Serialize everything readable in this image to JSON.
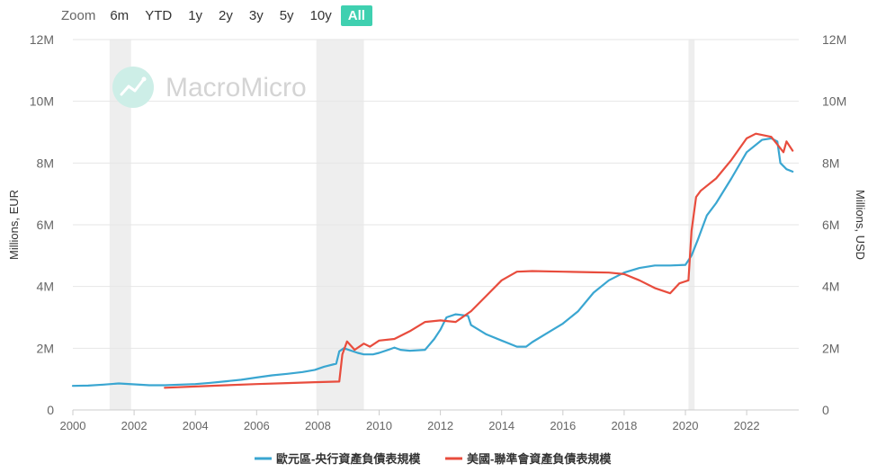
{
  "zoom": {
    "label": "Zoom",
    "buttons": [
      "6m",
      "YTD",
      "1y",
      "2y",
      "3y",
      "5y",
      "10y",
      "All"
    ],
    "active": "All"
  },
  "watermark": "MacroMicro",
  "chart_data": {
    "type": "line",
    "xlabel": "",
    "xlim": [
      2000,
      2023.7
    ],
    "x_ticks": [
      "2000",
      "2002",
      "2004",
      "2006",
      "2008",
      "2010",
      "2012",
      "2014",
      "2016",
      "2018",
      "2020",
      "2022"
    ],
    "ylabel_left": "Millions, EUR",
    "ylabel_right": "Millions, USD",
    "ylim_left": [
      0,
      12
    ],
    "ylim_right": [
      0,
      12
    ],
    "y_ticks_left": [
      "0",
      "2M",
      "4M",
      "6M",
      "8M",
      "10M",
      "12M"
    ],
    "y_ticks_right": [
      "0",
      "2M",
      "4M",
      "6M",
      "8M",
      "10M",
      "12M"
    ],
    "grid": true,
    "legend_position": "bottom-center",
    "recession_bands": [
      [
        2001.2,
        2001.9
      ],
      [
        2007.95,
        2009.5
      ],
      [
        2020.1,
        2020.3
      ]
    ],
    "series": [
      {
        "name": "歐元區-央行資產負債表規模",
        "axis": "left",
        "color": "#3aa6d1",
        "points": [
          [
            2000.0,
            0.78
          ],
          [
            2000.5,
            0.79
          ],
          [
            2001.0,
            0.82
          ],
          [
            2001.5,
            0.86
          ],
          [
            2002.0,
            0.83
          ],
          [
            2002.5,
            0.8
          ],
          [
            2003.0,
            0.8
          ],
          [
            2003.5,
            0.82
          ],
          [
            2004.0,
            0.84
          ],
          [
            2004.5,
            0.88
          ],
          [
            2005.0,
            0.93
          ],
          [
            2005.5,
            0.98
          ],
          [
            2006.0,
            1.05
          ],
          [
            2006.5,
            1.12
          ],
          [
            2007.0,
            1.17
          ],
          [
            2007.5,
            1.23
          ],
          [
            2007.9,
            1.3
          ],
          [
            2008.2,
            1.4
          ],
          [
            2008.6,
            1.5
          ],
          [
            2008.7,
            1.9
          ],
          [
            2008.85,
            2.0
          ],
          [
            2009.0,
            1.95
          ],
          [
            2009.3,
            1.85
          ],
          [
            2009.5,
            1.8
          ],
          [
            2009.8,
            1.8
          ],
          [
            2010.0,
            1.85
          ],
          [
            2010.3,
            1.95
          ],
          [
            2010.5,
            2.02
          ],
          [
            2010.7,
            1.95
          ],
          [
            2011.0,
            1.92
          ],
          [
            2011.5,
            1.95
          ],
          [
            2011.8,
            2.3
          ],
          [
            2012.0,
            2.6
          ],
          [
            2012.2,
            3.0
          ],
          [
            2012.5,
            3.1
          ],
          [
            2012.9,
            3.05
          ],
          [
            2013.0,
            2.75
          ],
          [
            2013.5,
            2.45
          ],
          [
            2014.0,
            2.25
          ],
          [
            2014.5,
            2.05
          ],
          [
            2014.8,
            2.05
          ],
          [
            2015.0,
            2.2
          ],
          [
            2015.5,
            2.5
          ],
          [
            2016.0,
            2.8
          ],
          [
            2016.5,
            3.2
          ],
          [
            2017.0,
            3.8
          ],
          [
            2017.5,
            4.2
          ],
          [
            2018.0,
            4.45
          ],
          [
            2018.5,
            4.6
          ],
          [
            2019.0,
            4.68
          ],
          [
            2019.5,
            4.68
          ],
          [
            2020.0,
            4.7
          ],
          [
            2020.2,
            5.0
          ],
          [
            2020.4,
            5.5
          ],
          [
            2020.7,
            6.3
          ],
          [
            2021.0,
            6.7
          ],
          [
            2021.5,
            7.5
          ],
          [
            2022.0,
            8.35
          ],
          [
            2022.5,
            8.75
          ],
          [
            2022.8,
            8.8
          ],
          [
            2023.0,
            8.7
          ],
          [
            2023.1,
            8.0
          ],
          [
            2023.3,
            7.8
          ],
          [
            2023.5,
            7.72
          ]
        ]
      },
      {
        "name": "美國-聯準會資產負債表規模",
        "axis": "right",
        "color": "#e84c3d",
        "points": [
          [
            2003.0,
            0.72
          ],
          [
            2004.0,
            0.76
          ],
          [
            2005.0,
            0.8
          ],
          [
            2006.0,
            0.84
          ],
          [
            2007.0,
            0.87
          ],
          [
            2007.9,
            0.9
          ],
          [
            2008.7,
            0.92
          ],
          [
            2008.8,
            1.8
          ],
          [
            2008.95,
            2.22
          ],
          [
            2009.2,
            1.95
          ],
          [
            2009.5,
            2.15
          ],
          [
            2009.7,
            2.05
          ],
          [
            2010.0,
            2.25
          ],
          [
            2010.5,
            2.3
          ],
          [
            2011.0,
            2.55
          ],
          [
            2011.5,
            2.85
          ],
          [
            2012.0,
            2.9
          ],
          [
            2012.5,
            2.85
          ],
          [
            2013.0,
            3.2
          ],
          [
            2013.5,
            3.7
          ],
          [
            2014.0,
            4.2
          ],
          [
            2014.5,
            4.48
          ],
          [
            2015.0,
            4.5
          ],
          [
            2016.0,
            4.48
          ],
          [
            2017.0,
            4.46
          ],
          [
            2017.5,
            4.45
          ],
          [
            2018.0,
            4.4
          ],
          [
            2018.5,
            4.2
          ],
          [
            2019.0,
            3.95
          ],
          [
            2019.5,
            3.78
          ],
          [
            2019.8,
            4.1
          ],
          [
            2020.1,
            4.2
          ],
          [
            2020.2,
            5.8
          ],
          [
            2020.35,
            6.9
          ],
          [
            2020.5,
            7.1
          ],
          [
            2021.0,
            7.5
          ],
          [
            2021.5,
            8.1
          ],
          [
            2022.0,
            8.8
          ],
          [
            2022.3,
            8.95
          ],
          [
            2022.8,
            8.85
          ],
          [
            2023.0,
            8.6
          ],
          [
            2023.2,
            8.35
          ],
          [
            2023.3,
            8.7
          ],
          [
            2023.5,
            8.4
          ]
        ]
      }
    ]
  }
}
